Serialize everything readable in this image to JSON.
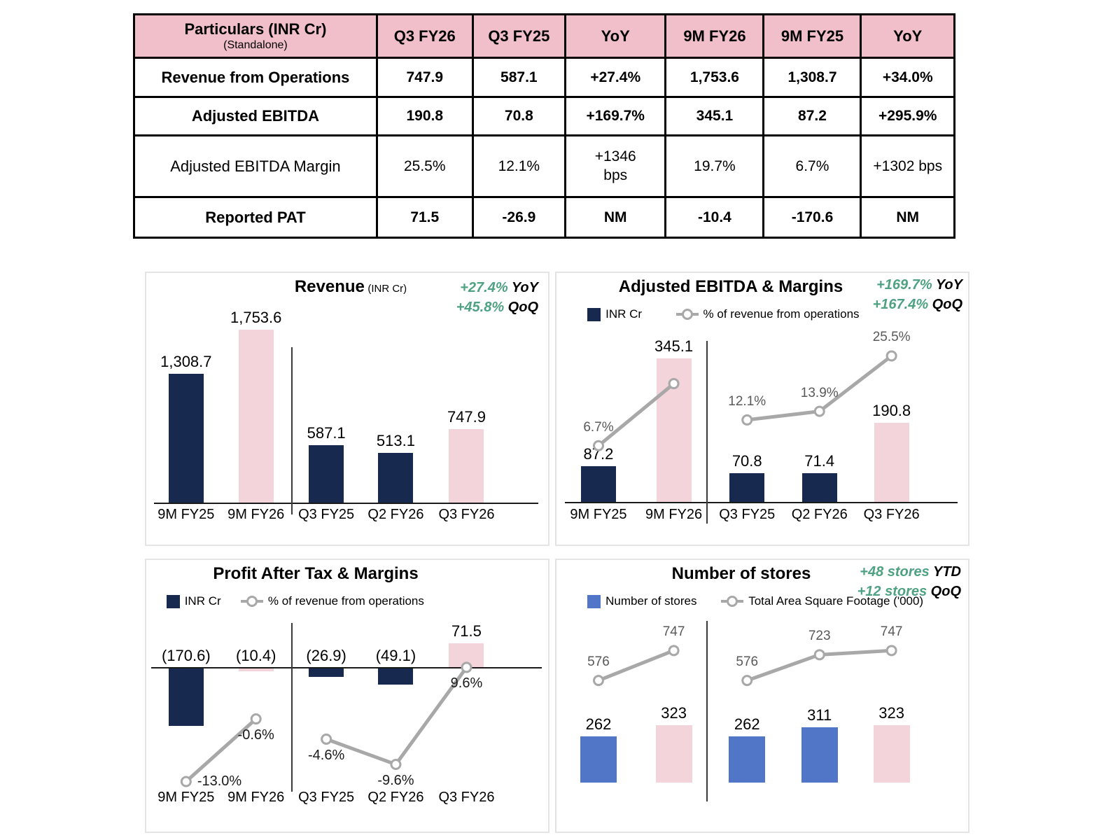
{
  "colors": {
    "navy": "#17294e",
    "pink": "#f4d4db",
    "blue": "#5176c8",
    "header_pink": "#f1bfca",
    "green": "#4fa183",
    "line_gray": "#a8a8a8",
    "label_gray": "#595959",
    "pat_label": "#1a1a1a",
    "black": "#000000"
  },
  "table": {
    "header": {
      "particulars_title": "Particulars (INR Cr)",
      "particulars_subtitle": "(Standalone)",
      "columns": [
        "Q3 FY26",
        "Q3 FY25",
        "YoY",
        "9M FY26",
        "9M FY25",
        "YoY"
      ]
    },
    "rows": [
      {
        "label": "Revenue from Operations",
        "bold": true,
        "values": [
          "747.9",
          "587.1",
          "+27.4%",
          "1,753.6",
          "1,308.7",
          "+34.0%"
        ]
      },
      {
        "label": "Adjusted EBITDA",
        "bold": true,
        "values": [
          "190.8",
          "70.8",
          "+169.7%",
          "345.1",
          "87.2",
          "+295.9%"
        ]
      },
      {
        "label": "Adjusted EBITDA Margin",
        "bold": false,
        "values": [
          "25.5%",
          "12.1%",
          "+1346 bps",
          "19.7%",
          "6.7%",
          "+1302 bps"
        ]
      },
      {
        "label": "Reported PAT",
        "bold": true,
        "values": [
          "71.5",
          "-26.9",
          "NM",
          "-10.4",
          "-170.6",
          "NM"
        ]
      }
    ]
  },
  "chart_data": [
    {
      "type": "bar",
      "title": "Revenue",
      "title_suffix": "(INR Cr)",
      "annotations": [
        {
          "value": "+27.4%",
          "suffix": "YoY"
        },
        {
          "value": "+45.8%",
          "suffix": "QoQ"
        }
      ],
      "categories": [
        "9M FY25",
        "9M FY26",
        "Q3 FY25",
        "Q2 FY26",
        "Q3 FY26"
      ],
      "values": [
        1308.7,
        1753.6,
        587.1,
        513.1,
        747.9
      ],
      "value_labels": [
        "1,308.7",
        "1,753.6",
        "587.1",
        "513.1",
        "747.9"
      ],
      "bar_colors": [
        "navy",
        "pink",
        "navy",
        "navy",
        "pink"
      ],
      "divider_after_index": 1,
      "xlabel": "",
      "ylabel": "INR Cr",
      "ylim": [
        0,
        1900
      ],
      "grid": false,
      "legend_position": "none"
    },
    {
      "type": "bar+line",
      "title": "Adjusted EBITDA & Margins",
      "title_suffix": "",
      "annotations": [
        {
          "value": "+169.7%",
          "suffix": "YoY"
        },
        {
          "value": "+167.4%",
          "suffix": "QoQ"
        }
      ],
      "legend": [
        {
          "swatch": "bar",
          "color": "navy",
          "label": "INR Cr"
        },
        {
          "swatch": "line",
          "label": "% of revenue from operations"
        }
      ],
      "categories": [
        "9M FY25",
        "9M FY26",
        "Q3 FY25",
        "Q2 FY26",
        "Q3 FY26"
      ],
      "series": [
        {
          "name": "Adjusted EBITDA (INR Cr)",
          "type": "bar",
          "values": [
            87.2,
            345.1,
            70.8,
            71.4,
            190.8
          ],
          "value_labels": [
            "87.2",
            "345.1",
            "70.8",
            "71.4",
            "190.8"
          ],
          "bar_colors": [
            "navy",
            "pink",
            "navy",
            "navy",
            "pink"
          ]
        },
        {
          "name": "% of revenue from operations",
          "type": "line",
          "values": [
            6.7,
            19.7,
            12.1,
            13.9,
            25.5
          ],
          "value_labels": [
            "6.7%",
            "",
            "12.1%",
            "13.9%",
            "25.5%"
          ]
        }
      ],
      "divider_after_index": 1,
      "ylim": [
        0,
        650
      ],
      "y2lim": [
        0,
        30
      ],
      "grid": false,
      "legend_position": "top-left"
    },
    {
      "type": "bar+line",
      "title": "Profit After Tax & Margins",
      "title_suffix": "",
      "annotations": [],
      "legend": [
        {
          "swatch": "bar",
          "color": "navy",
          "label": "INR Cr"
        },
        {
          "swatch": "line",
          "label": "% of revenue from operations"
        }
      ],
      "categories": [
        "9M FY25",
        "9M FY26",
        "Q3 FY25",
        "Q2 FY26",
        "Q3 FY26"
      ],
      "series": [
        {
          "name": "Profit After Tax (INR Cr)",
          "type": "bar",
          "values": [
            -170.6,
            -10.4,
            -26.9,
            -49.1,
            71.5
          ],
          "value_labels": [
            "(170.6)",
            "(10.4)",
            "(26.9)",
            "(49.1)",
            "71.5"
          ],
          "bar_colors": [
            "navy",
            "pink",
            "navy",
            "navy",
            "pink"
          ]
        },
        {
          "name": "% of revenue from operations",
          "type": "line",
          "values": [
            -13.0,
            -0.6,
            -4.6,
            -9.6,
            9.6
          ],
          "value_labels": [
            "-13.0%",
            "-0.6%",
            "-4.6%",
            "-9.6%",
            "9.6%"
          ]
        }
      ],
      "divider_after_index": 1,
      "ylim": [
        -320,
        120
      ],
      "y2lim": [
        -22,
        12
      ],
      "grid": false,
      "legend_position": "top-left"
    },
    {
      "type": "bar+line",
      "title": "Number of stores",
      "title_suffix": "",
      "annotations": [
        {
          "value": "+48 stores",
          "suffix": "YTD"
        },
        {
          "value": "+12 stores",
          "suffix": "QoQ"
        }
      ],
      "legend": [
        {
          "swatch": "bar",
          "color": "blue",
          "label": "Number of stores"
        },
        {
          "swatch": "line",
          "label": "Total Area Square Footage ('000)"
        }
      ],
      "categories": [
        "",
        "",
        "",
        "",
        ""
      ],
      "series": [
        {
          "name": "Number of stores",
          "type": "bar",
          "values": [
            262,
            323,
            262,
            311,
            323
          ],
          "value_labels": [
            "262",
            "323",
            "262",
            "311",
            "323"
          ],
          "bar_colors": [
            "blue",
            "pink",
            "blue",
            "blue",
            "pink"
          ]
        },
        {
          "name": "Total Area Square Footage ('000)",
          "type": "line",
          "values": [
            576,
            747,
            576,
            723,
            747
          ],
          "value_labels": [
            "576",
            "747",
            "576",
            "723",
            "747"
          ]
        }
      ],
      "divider_after_index": 1,
      "ylim": [
        0,
        1500
      ],
      "y2lim": [
        400,
        900
      ],
      "grid": false,
      "legend_position": "top-left"
    }
  ]
}
